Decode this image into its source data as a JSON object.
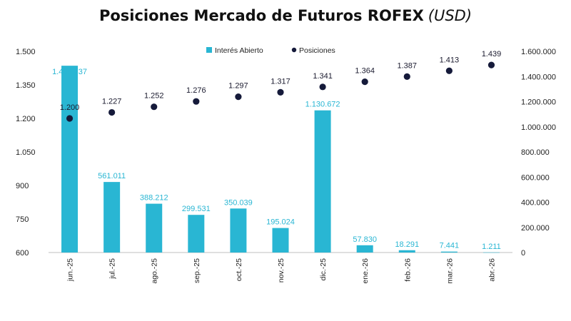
{
  "chart_data": {
    "type": "bar",
    "title": "Posiciones Mercado de Futuros ROFEX",
    "title_unit": "(USD)",
    "categories": [
      "jun.-25",
      "jul.-25",
      "ago.-25",
      "sep.-25",
      "oct.-25",
      "nov.-25",
      "dic.-25",
      "ene.-26",
      "feb.-26",
      "mar.-26",
      "abr.-26"
    ],
    "series": [
      {
        "name": "Interés Abierto",
        "type": "bar",
        "axis": "right",
        "color": "#29b6d3",
        "label_color": "#29b6d3",
        "values": [
          1485737,
          561011,
          388212,
          299531,
          350039,
          195024,
          1130672,
          57830,
          18291,
          7441,
          1211
        ],
        "labels": [
          "1.485.737",
          "561.011",
          "388.212",
          "299.531",
          "350.039",
          "195.024",
          "1.130.672",
          "57.830",
          "18.291",
          "7.441",
          "1.211"
        ]
      },
      {
        "name": "Posiciones",
        "type": "scatter",
        "axis": "left",
        "color": "#151a3a",
        "values": [
          1200,
          1227,
          1252,
          1276,
          1297,
          1317,
          1341,
          1364,
          1387,
          1413,
          1439
        ],
        "labels": [
          "1.200",
          "1.227",
          "1.252",
          "1.276",
          "1.297",
          "1.317",
          "1.341",
          "1.364",
          "1.387",
          "1.413",
          "1.439"
        ]
      }
    ],
    "y_left": {
      "lim": [
        600,
        1500
      ],
      "ticks": [
        600,
        750,
        900,
        1050,
        1200,
        1350,
        1500
      ],
      "tick_labels": [
        "600",
        "750",
        "900",
        "1.050",
        "1.200",
        "1.350",
        "1.500"
      ]
    },
    "y_right": {
      "lim": [
        0,
        1600000
      ],
      "ticks": [
        0,
        200000,
        400000,
        600000,
        800000,
        1000000,
        1200000,
        1400000,
        1600000
      ],
      "tick_labels": [
        "0",
        "200.000",
        "400.000",
        "600.000",
        "800.000",
        "1.000.000",
        "1.200.000",
        "1.400.000",
        "1.600.000"
      ]
    },
    "legend_position": "top-center",
    "grid": false
  }
}
